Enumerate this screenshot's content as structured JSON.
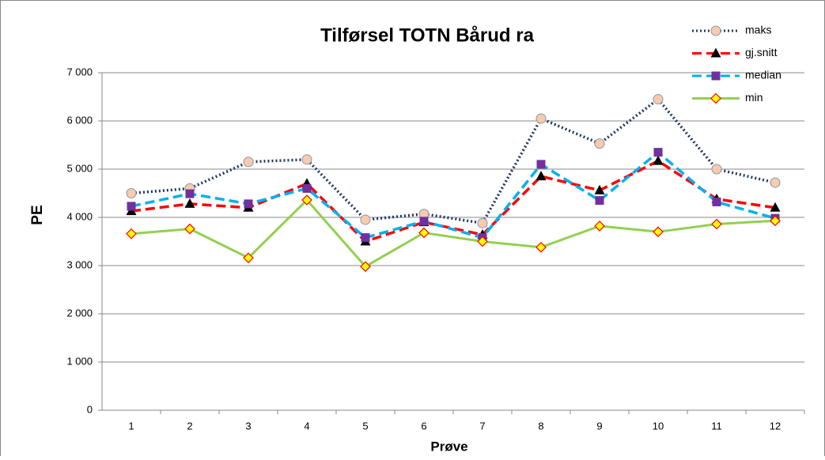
{
  "chart_data": {
    "type": "line",
    "title": "Tilførsel TOTN Bårud ra",
    "x_label": "Prøve",
    "y_label": "PE",
    "categories": [
      "1",
      "2",
      "3",
      "4",
      "5",
      "6",
      "7",
      "8",
      "9",
      "10",
      "11",
      "12"
    ],
    "series": [
      {
        "name": "maks",
        "color": "#1f3864",
        "line_style": "dotted",
        "marker": "circle",
        "marker_color": "#f8cbad",
        "values": [
          4500,
          4600,
          5150,
          5200,
          3950,
          4070,
          3880,
          6050,
          5530,
          6450,
          5000,
          4720
        ]
      },
      {
        "name": "gj.snitt",
        "color": "#ff0000",
        "line_style": "dashed",
        "marker": "triangle",
        "marker_color": "#000000",
        "values": [
          4130,
          4280,
          4200,
          4700,
          3500,
          3900,
          3640,
          4850,
          4560,
          5170,
          4380,
          4200
        ]
      },
      {
        "name": "median",
        "color": "#00b0f0",
        "line_style": "dashed",
        "marker": "square",
        "marker_color": "#7030a0",
        "values": [
          4230,
          4490,
          4280,
          4600,
          3580,
          3920,
          3580,
          5100,
          4350,
          5350,
          4320,
          3980
        ]
      },
      {
        "name": "min",
        "color": "#92d050",
        "line_style": "solid",
        "marker": "diamond",
        "marker_color": "#ffff00",
        "values": [
          3660,
          3760,
          3160,
          4360,
          2980,
          3680,
          3500,
          3380,
          3820,
          3700,
          3860,
          3930
        ]
      }
    ],
    "ylim": [
      0,
      7000
    ],
    "yticks": [
      0,
      {
        "value": 1000,
        "label": "1 000"
      },
      {
        "value": 2000,
        "label": "2 000"
      },
      {
        "value": 3000,
        "label": "3 000"
      },
      {
        "value": 4000,
        "label": "4 000"
      },
      {
        "value": 5000,
        "label": "5 000"
      },
      {
        "value": 6000,
        "label": "6 000"
      },
      {
        "value": 7000,
        "label": "7 000"
      }
    ],
    "grid": true,
    "legend": "top-right"
  }
}
